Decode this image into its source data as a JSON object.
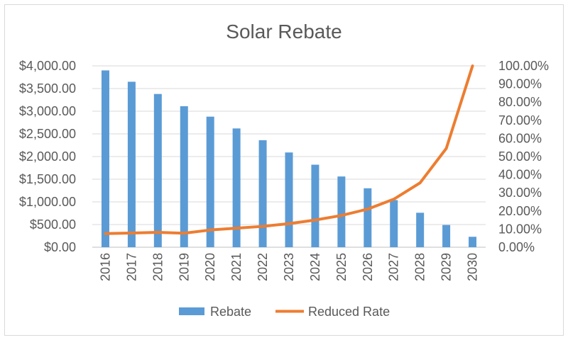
{
  "chart_data": {
    "type": "bar",
    "title": "Solar Rebate",
    "categories": [
      "2016",
      "2017",
      "2018",
      "2019",
      "2020",
      "2021",
      "2022",
      "2023",
      "2024",
      "2025",
      "2026",
      "2027",
      "2028",
      "2029",
      "2030"
    ],
    "series": [
      {
        "name": "Rebate",
        "type": "bar",
        "axis": "left",
        "color": "#5b9bd5",
        "values": [
          3900,
          3650,
          3380,
          3110,
          2880,
          2620,
          2360,
          2090,
          1820,
          1560,
          1300,
          1040,
          760,
          490,
          230
        ]
      },
      {
        "name": "Reduced Rate",
        "type": "line",
        "axis": "right",
        "color": "#ed7d31",
        "values": [
          0.075,
          0.078,
          0.082,
          0.077,
          0.095,
          0.105,
          0.115,
          0.13,
          0.15,
          0.175,
          0.21,
          0.265,
          0.355,
          0.545,
          1.0
        ]
      }
    ],
    "y_left": {
      "ylim": [
        0,
        4000
      ],
      "ticks": [
        0,
        500,
        1000,
        1500,
        2000,
        2500,
        3000,
        3500,
        4000
      ],
      "tick_labels": [
        "$0.00",
        "$500.00",
        "$1,000.00",
        "$1,500.00",
        "$2,000.00",
        "$2,500.00",
        "$3,000.00",
        "$3,500.00",
        "$4,000.00"
      ]
    },
    "y_right": {
      "ylim": [
        0,
        1
      ],
      "ticks": [
        0,
        0.1,
        0.2,
        0.3,
        0.4,
        0.5,
        0.6,
        0.7,
        0.8,
        0.9,
        1.0
      ],
      "tick_labels": [
        "0.00%",
        "10.00%",
        "20.00%",
        "30.00%",
        "40.00%",
        "50.00%",
        "60.00%",
        "70.00%",
        "80.00%",
        "90.00%",
        "100.00%"
      ]
    },
    "grid": true,
    "legend": "bottom",
    "colors": {
      "gridline": "#d9d9d9",
      "text": "#595959",
      "axis": "#bfbfbf"
    }
  }
}
